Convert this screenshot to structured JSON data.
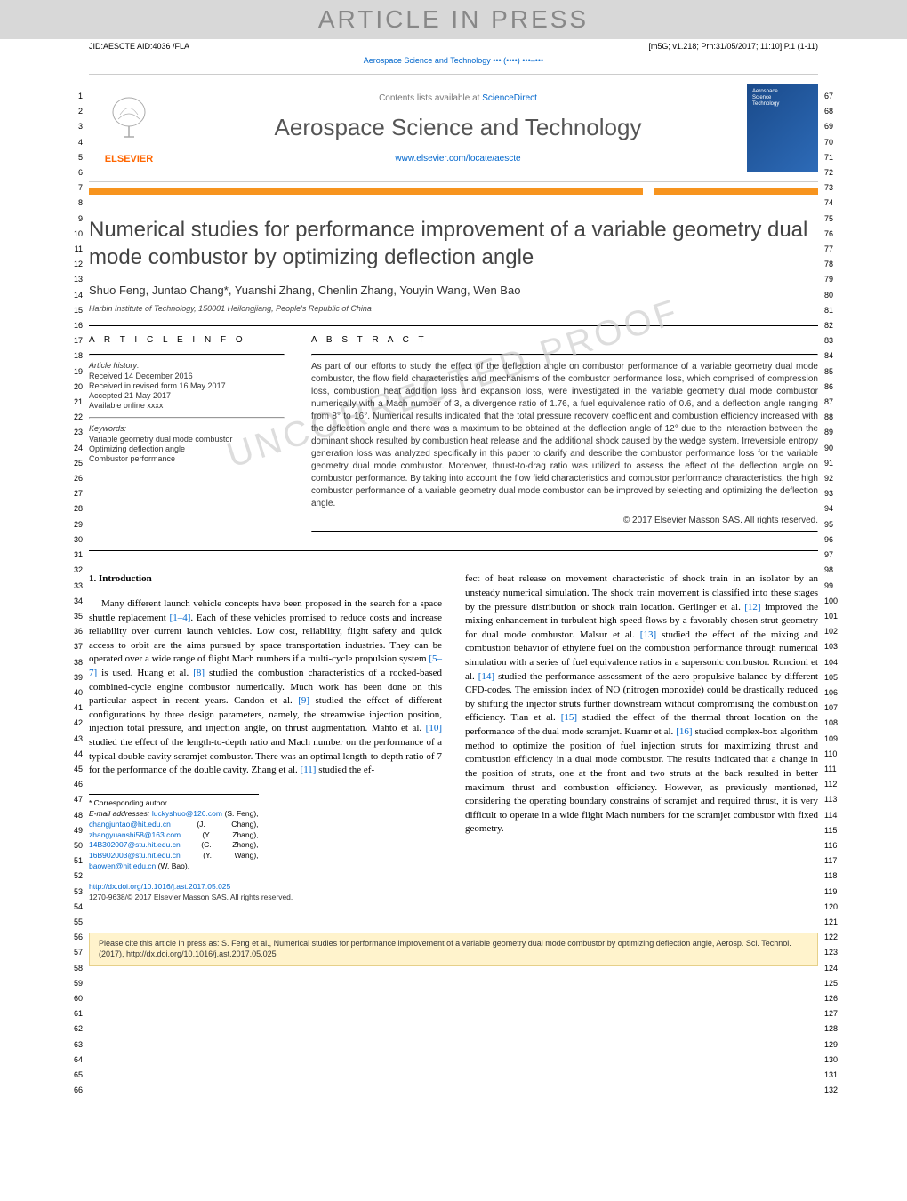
{
  "banner": "ARTICLE IN PRESS",
  "meta_left": "JID:AESCTE   AID:4036 /FLA",
  "meta_right": "[m5G; v1.218; Prn:31/05/2017; 11:10] P.1 (1-11)",
  "journal_line": "Aerospace Science and Technology ••• (••••) •••–•••",
  "header": {
    "elsevier": "ELSEVIER",
    "contents_prefix": "Contents lists available at ",
    "contents_link": "ScienceDirect",
    "journal_name": "Aerospace Science and Technology",
    "journal_url": "www.elsevier.com/locate/aescte",
    "cover_text": "Aerospace\nScience\nTechnology"
  },
  "title": "Numerical studies for performance improvement of a variable geometry dual mode combustor by optimizing deflection angle",
  "authors": "Shuo Feng, Juntao Chang*, Yuanshi Zhang, Chenlin Zhang, Youyin Wang, Wen Bao",
  "affiliation": "Harbin Institute of Technology, 150001 Heilongjiang, People's Republic of China",
  "article_info": {
    "heading": "A R T I C L E   I N F O",
    "history_label": "Article history:",
    "received": "Received 14 December 2016",
    "revised": "Received in revised form 16 May 2017",
    "accepted": "Accepted 21 May 2017",
    "online": "Available online xxxx",
    "keywords_label": "Keywords:",
    "kw1": "Variable geometry dual mode combustor",
    "kw2": "Optimizing deflection angle",
    "kw3": "Combustor performance"
  },
  "abstract": {
    "heading": "A B S T R A C T",
    "text": "As part of our efforts to study the effect of the deflection angle on combustor performance of a variable geometry dual mode combustor, the flow field characteristics and mechanisms of the combustor performance loss, which comprised of compression loss, combustion heat addition loss and expansion loss, were investigated in the variable geometry dual mode combustor numerically with a Mach number of 3, a divergence ratio of 1.76, a fuel equivalence ratio of 0.6, and a deflection angle ranging from 8° to 16°. Numerical results indicated that the total pressure recovery coefficient and combustion efficiency increased with the deflection angle and there was a maximum to be obtained at the deflection angle of 12° due to the interaction between the dominant shock resulted by combustion heat release and the additional shock caused by the wedge system. Irreversible entropy generation loss was analyzed specifically in this paper to clarify and describe the combustor performance loss for the variable geometry dual mode combustor. Moreover, thrust-to-drag ratio was utilized to assess the effect of the deflection angle on combustor performance. By taking into account the flow field characteristics and combustor performance characteristics, the high combustor performance of a variable geometry dual mode combustor can be improved by selecting and optimizing the deflection angle.",
    "copyright": "© 2017 Elsevier Masson SAS. All rights reserved."
  },
  "watermark_diag": "UNCORRECTED PROOF",
  "section1_heading": "1. Introduction",
  "body_left": "Many different launch vehicle concepts have been proposed in the search for a space shuttle replacement [1–4]. Each of these vehicles promised to reduce costs and increase reliability over current launch vehicles. Low cost, reliability, flight safety and quick access to orbit are the aims pursued by space transportation industries. They can be operated over a wide range of flight Mach numbers if a multi-cycle propulsion system [5–7] is used. Huang et al. [8] studied the combustion characteristics of a rocked-based combined-cycle engine combustor numerically. Much work has been done on this particular aspect in recent years. Candon et al. [9] studied the effect of different configurations by three design parameters, namely, the streamwise injection position, injection total pressure, and injection angle, on thrust augmentation. Mahto et al. [10] studied the effect of the length-to-depth ratio and Mach number on the performance of a typical double cavity scramjet combustor. There was an optimal length-to-depth ratio of 7 for the performance of the double cavity. Zhang et al. [11] studied the ef-",
  "body_right": "fect of heat release on movement characteristic of shock train in an isolator by an unsteady numerical simulation. The shock train movement is classified into these stages by the pressure distribution or shock train location. Gerlinger et al. [12] improved the mixing enhancement in turbulent high speed flows by a favorably chosen strut geometry for dual mode combustor. Malsur et al. [13] studied the effect of the mixing and combustion behavior of ethylene fuel on the combustion performance through numerical simulation with a series of fuel equivalence ratios in a supersonic combustor. Roncioni et al. [14] studied the performance assessment of the aero-propulsive balance by different CFD-codes. The emission index of NO (nitrogen monoxide) could be drastically reduced by shifting the injector struts further downstream without compromising the combustion efficiency. Tian et al. [15] studied the effect of the thermal throat location on the performance of the dual mode scramjet. Kuamr et al. [16] studied complex-box algorithm method to optimize the position of fuel injection struts for maximizing thrust and combustion efficiency in a dual mode combustor. The results indicated that a change in the position of struts, one at the front and two struts at the back resulted in better maximum thrust and combustion efficiency. However, as previously mentioned, considering the operating boundary constrains of scramjet and required thrust, it is very difficult to operate in a wide flight Mach numbers for the scramjet combustor with fixed geometry.",
  "footnotes": {
    "corr": "* Corresponding author.",
    "emails_label": "E-mail addresses:",
    "e1": "luckyshuo@126.com",
    "e1n": "(S. Feng),",
    "e2": "changjuntao@hit.edu.cn",
    "e2n": "(J. Chang),",
    "e3": "zhangyuanshi58@163.com",
    "e3n": "(Y. Zhang),",
    "e4": "14B302007@stu.hit.edu.cn",
    "e4n": "(C. Zhang),",
    "e5": "16B902003@stu.hit.edu.cn",
    "e5n": "(Y. Wang),",
    "e6": "baowen@hit.edu.cn",
    "e6n": "(W. Bao)."
  },
  "doi": {
    "url": "http://dx.doi.org/10.1016/j.ast.2017.05.025",
    "issn": "1270-9638/© 2017 Elsevier Masson SAS. All rights reserved."
  },
  "cite_box": "Please cite this article in press as: S. Feng et al., Numerical studies for performance improvement of a variable geometry dual mode combustor by optimizing deflection angle, Aerosp. Sci. Technol. (2017), http://dx.doi.org/10.1016/j.ast.2017.05.025",
  "line_numbers": {
    "left_start": 1,
    "left_end": 66,
    "right_start": 67,
    "right_end": 132
  },
  "colors": {
    "link": "#0066cc",
    "orange_bar": "#f7941e",
    "elsevier_orange": "#ff6600",
    "cite_bg": "#fff3cc",
    "cite_border": "#e6d089",
    "cover_bg_start": "#1a4a8a",
    "cover_bg_end": "#2d6bb8",
    "watermark": "#d0d0d0"
  }
}
